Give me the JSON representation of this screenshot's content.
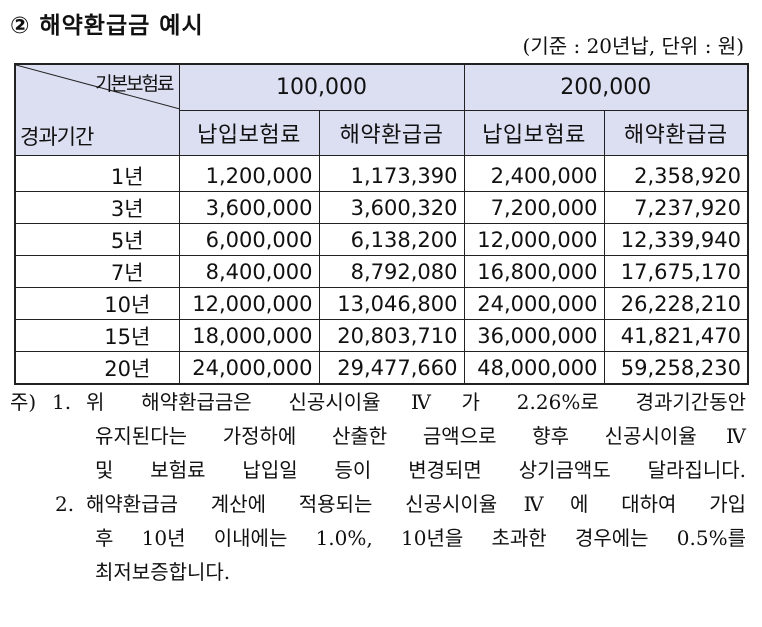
{
  "title": "② 해약환급금 예시",
  "unit_note": "(기준 : 20년납, 단위 : 원)",
  "table": {
    "corner_top": "기본보험료",
    "corner_bottom": "경과기간",
    "groups": [
      "100,000",
      "200,000"
    ],
    "subheaders": [
      "납입보험료",
      "해약환급금",
      "납입보험료",
      "해약환급금"
    ],
    "rows": [
      {
        "period": "1년",
        "values": [
          "1,200,000",
          "1,173,390",
          "2,400,000",
          "2,358,920"
        ]
      },
      {
        "period": "3년",
        "values": [
          "3,600,000",
          "3,600,320",
          "7,200,000",
          "7,237,920"
        ]
      },
      {
        "period": "5년",
        "values": [
          "6,000,000",
          "6,138,200",
          "12,000,000",
          "12,339,940"
        ]
      },
      {
        "period": "7년",
        "values": [
          "8,400,000",
          "8,792,080",
          "16,800,000",
          "17,675,170"
        ]
      },
      {
        "period": "10년",
        "values": [
          "12,000,000",
          "13,046,800",
          "24,000,000",
          "26,228,210"
        ]
      },
      {
        "period": "15년",
        "values": [
          "18,000,000",
          "20,803,710",
          "36,000,000",
          "41,821,470"
        ]
      },
      {
        "period": "20년",
        "values": [
          "24,000,000",
          "29,477,660",
          "48,000,000",
          "59,258,230"
        ]
      }
    ]
  },
  "notes": {
    "prefix": "주)",
    "n1_num": "1.",
    "n1_line1": "위 해약환급금은 신공시이율Ⅳ가 2.26%로 경과기간동안",
    "n1_line2": "유지된다는 가정하에 산출한 금액으로 향후 신공시이율Ⅳ",
    "n1_line3": "및 보험료 납입일 등이 변경되면 상기금액도 달라집니다.",
    "n2_num": "2.",
    "n2_line1": "해약환급금 계산에 적용되는 신공시이율Ⅳ에 대하여 가입",
    "n2_line2": "후 10년 이내에는 1.0%, 10년을 초과한 경우에는 0.5%를",
    "n2_line3": "최저보증합니다."
  }
}
